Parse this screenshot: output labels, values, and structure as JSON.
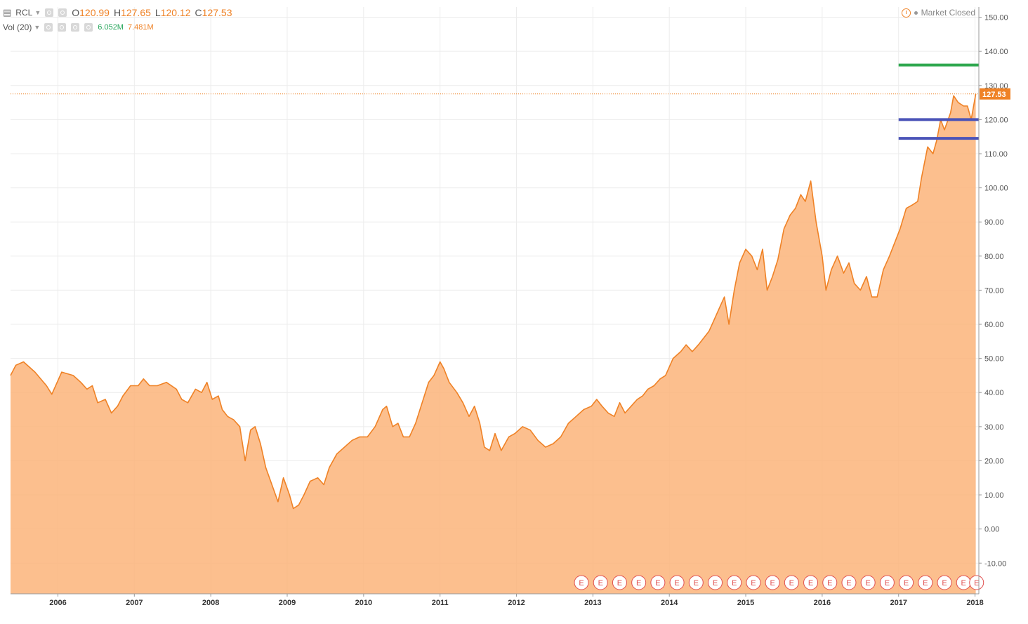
{
  "header": {
    "symbol": "RCL",
    "open_label": "O",
    "open": "120.99",
    "high_label": "H",
    "high": "127.65",
    "low_label": "L",
    "low": "120.12",
    "close_label": "C",
    "close": "127.53",
    "vol_label": "Vol (20)",
    "vol_value": "6.052M",
    "vol_avg": "7.481M",
    "market_status": "Market Closed"
  },
  "colors": {
    "line": "#ef8226",
    "area": "#fbb47a",
    "vol_up": "#a9c98a",
    "vol_down": "#ef7a5a",
    "resistance": "#2fa84f",
    "support": "#4a53b8",
    "last_price_label": "#ef8226",
    "earnings_marker": "#e05050"
  },
  "chart_data": {
    "type": "area",
    "y_ticks": [
      "150.00",
      "140.00",
      "130.00",
      "120.00",
      "110.00",
      "100.00",
      "90.00",
      "80.00",
      "70.00",
      "60.00",
      "50.00",
      "40.00",
      "30.00",
      "20.00",
      "10.00",
      "0.00",
      "-10.00"
    ],
    "x_ticks": [
      "2006",
      "2007",
      "2008",
      "2009",
      "2010",
      "2011",
      "2012",
      "2013",
      "2014",
      "2015",
      "2016",
      "2017",
      "2018"
    ],
    "ylim": [
      -19,
      153
    ],
    "xlim": [
      2005.38,
      2018.05
    ],
    "last_price": "127.53",
    "series": [
      {
        "points": [
          [
            2005.38,
            45
          ],
          [
            2005.45,
            48
          ],
          [
            2005.55,
            49
          ],
          [
            2005.7,
            46
          ],
          [
            2005.85,
            42
          ],
          [
            2005.92,
            39.5
          ],
          [
            2006.05,
            46
          ],
          [
            2006.2,
            45
          ],
          [
            2006.3,
            43
          ],
          [
            2006.38,
            41
          ],
          [
            2006.45,
            42
          ],
          [
            2006.52,
            37
          ],
          [
            2006.62,
            38
          ],
          [
            2006.7,
            34
          ],
          [
            2006.78,
            36
          ],
          [
            2006.85,
            39
          ],
          [
            2006.95,
            42
          ],
          [
            2007.05,
            42
          ],
          [
            2007.12,
            44
          ],
          [
            2007.2,
            42
          ],
          [
            2007.3,
            42
          ],
          [
            2007.42,
            43
          ],
          [
            2007.55,
            41
          ],
          [
            2007.62,
            38
          ],
          [
            2007.7,
            37
          ],
          [
            2007.8,
            41
          ],
          [
            2007.88,
            40
          ],
          [
            2007.95,
            43
          ],
          [
            2008.02,
            38
          ],
          [
            2008.1,
            39
          ],
          [
            2008.15,
            35
          ],
          [
            2008.22,
            33
          ],
          [
            2008.3,
            32
          ],
          [
            2008.38,
            30
          ],
          [
            2008.45,
            20
          ],
          [
            2008.52,
            29
          ],
          [
            2008.58,
            30
          ],
          [
            2008.65,
            25
          ],
          [
            2008.72,
            18
          ],
          [
            2008.8,
            13
          ],
          [
            2008.88,
            8
          ],
          [
            2008.95,
            15
          ],
          [
            2009.03,
            10
          ],
          [
            2009.08,
            6
          ],
          [
            2009.15,
            7
          ],
          [
            2009.22,
            10
          ],
          [
            2009.3,
            14
          ],
          [
            2009.4,
            15
          ],
          [
            2009.48,
            13
          ],
          [
            2009.55,
            18
          ],
          [
            2009.65,
            22
          ],
          [
            2009.75,
            24
          ],
          [
            2009.85,
            26
          ],
          [
            2009.95,
            27
          ],
          [
            2010.05,
            27
          ],
          [
            2010.15,
            30
          ],
          [
            2010.25,
            35
          ],
          [
            2010.3,
            36
          ],
          [
            2010.38,
            30
          ],
          [
            2010.45,
            31
          ],
          [
            2010.52,
            27
          ],
          [
            2010.6,
            27
          ],
          [
            2010.68,
            31
          ],
          [
            2010.78,
            38
          ],
          [
            2010.85,
            43
          ],
          [
            2010.92,
            45
          ],
          [
            2011.0,
            49
          ],
          [
            2011.05,
            47
          ],
          [
            2011.12,
            43
          ],
          [
            2011.22,
            40
          ],
          [
            2011.3,
            37
          ],
          [
            2011.38,
            33
          ],
          [
            2011.45,
            36
          ],
          [
            2011.52,
            31
          ],
          [
            2011.58,
            24
          ],
          [
            2011.65,
            23
          ],
          [
            2011.72,
            28
          ],
          [
            2011.8,
            23
          ],
          [
            2011.9,
            27
          ],
          [
            2011.98,
            28
          ],
          [
            2012.08,
            30
          ],
          [
            2012.18,
            29
          ],
          [
            2012.28,
            26
          ],
          [
            2012.38,
            24
          ],
          [
            2012.48,
            25
          ],
          [
            2012.58,
            27
          ],
          [
            2012.68,
            31
          ],
          [
            2012.78,
            33
          ],
          [
            2012.88,
            35
          ],
          [
            2012.98,
            36
          ],
          [
            2013.05,
            38
          ],
          [
            2013.12,
            36
          ],
          [
            2013.2,
            34
          ],
          [
            2013.28,
            33
          ],
          [
            2013.35,
            37
          ],
          [
            2013.42,
            34
          ],
          [
            2013.5,
            36
          ],
          [
            2013.58,
            38
          ],
          [
            2013.65,
            39
          ],
          [
            2013.72,
            41
          ],
          [
            2013.8,
            42
          ],
          [
            2013.88,
            44
          ],
          [
            2013.95,
            45
          ],
          [
            2014.05,
            50
          ],
          [
            2014.15,
            52
          ],
          [
            2014.22,
            54
          ],
          [
            2014.3,
            52
          ],
          [
            2014.38,
            54
          ],
          [
            2014.45,
            56
          ],
          [
            2014.52,
            58
          ],
          [
            2014.6,
            62
          ],
          [
            2014.66,
            65
          ],
          [
            2014.72,
            68
          ],
          [
            2014.78,
            60
          ],
          [
            2014.85,
            70
          ],
          [
            2014.92,
            78
          ],
          [
            2015.0,
            82
          ],
          [
            2015.08,
            80
          ],
          [
            2015.15,
            76
          ],
          [
            2015.22,
            82
          ],
          [
            2015.28,
            70
          ],
          [
            2015.35,
            74
          ],
          [
            2015.42,
            79
          ],
          [
            2015.5,
            88
          ],
          [
            2015.58,
            92
          ],
          [
            2015.65,
            94
          ],
          [
            2015.72,
            98
          ],
          [
            2015.78,
            96
          ],
          [
            2015.85,
            102
          ],
          [
            2015.92,
            90
          ],
          [
            2016.0,
            80
          ],
          [
            2016.05,
            70
          ],
          [
            2016.12,
            76
          ],
          [
            2016.2,
            80
          ],
          [
            2016.28,
            75
          ],
          [
            2016.35,
            78
          ],
          [
            2016.42,
            72
          ],
          [
            2016.5,
            70
          ],
          [
            2016.58,
            74
          ],
          [
            2016.65,
            68
          ],
          [
            2016.72,
            68
          ],
          [
            2016.8,
            76
          ],
          [
            2016.88,
            80
          ],
          [
            2016.95,
            84
          ],
          [
            2017.02,
            88
          ],
          [
            2017.1,
            94
          ],
          [
            2017.18,
            95
          ],
          [
            2017.25,
            96
          ],
          [
            2017.3,
            103
          ],
          [
            2017.38,
            112
          ],
          [
            2017.45,
            110
          ],
          [
            2017.5,
            114
          ],
          [
            2017.55,
            120
          ],
          [
            2017.6,
            117
          ],
          [
            2017.68,
            122
          ],
          [
            2017.72,
            127
          ],
          [
            2017.78,
            125
          ],
          [
            2017.85,
            124
          ],
          [
            2017.9,
            124
          ],
          [
            2017.95,
            120
          ],
          [
            2018.01,
            127.53
          ]
        ]
      }
    ],
    "volume": [],
    "volume_axis_max": 36,
    "levels": [
      {
        "kind": "resistance",
        "value": 136,
        "from": 2017.0,
        "to": 2018.05
      },
      {
        "kind": "support",
        "value": 120,
        "from": 2017.0,
        "to": 2018.05
      },
      {
        "kind": "support",
        "value": 114.5,
        "from": 2017.0,
        "to": 2018.05
      }
    ],
    "earnings_marker_label": "E",
    "earnings_markers": [
      2012.85,
      2013.1,
      2013.35,
      2013.6,
      2013.85,
      2014.1,
      2014.35,
      2014.6,
      2014.85,
      2015.1,
      2015.35,
      2015.6,
      2015.85,
      2016.1,
      2016.35,
      2016.6,
      2016.85,
      2017.1,
      2017.35,
      2017.6,
      2017.85,
      2018.02
    ],
    "grid": true
  }
}
